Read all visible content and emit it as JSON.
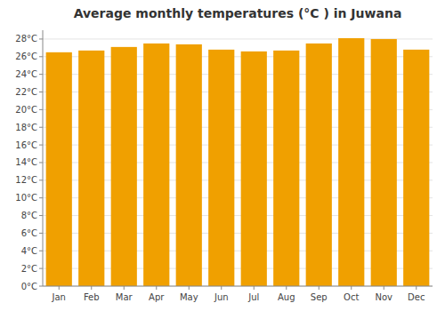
{
  "chart_data": {
    "type": "bar",
    "title": "Average monthly temperatures (°C ) in Juwana",
    "categories": [
      "Jan",
      "Feb",
      "Mar",
      "Apr",
      "May",
      "Jun",
      "Jul",
      "Aug",
      "Sep",
      "Oct",
      "Nov",
      "Dec"
    ],
    "values": [
      26.5,
      26.7,
      27.1,
      27.5,
      27.4,
      26.8,
      26.6,
      26.7,
      27.5,
      28.1,
      28.0,
      26.8
    ],
    "color": "#F0A000",
    "ylim": [
      0,
      29
    ],
    "yticks": [
      {
        "value": 0,
        "label": "0°C"
      },
      {
        "value": 2,
        "label": "2°C"
      },
      {
        "value": 4,
        "label": "4°C"
      },
      {
        "value": 6,
        "label": "6°C"
      },
      {
        "value": 8,
        "label": "8°C"
      },
      {
        "value": 10,
        "label": "10°C"
      },
      {
        "value": 12,
        "label": "12°C"
      },
      {
        "value": 14,
        "label": "14°C"
      },
      {
        "value": 16,
        "label": "16°C"
      },
      {
        "value": 18,
        "label": "18°C"
      },
      {
        "value": 20,
        "label": "20°C"
      },
      {
        "value": 22,
        "label": "22°C"
      },
      {
        "value": 24,
        "label": "24°C"
      },
      {
        "value": 26,
        "label": "26°C"
      },
      {
        "value": 28,
        "label": "28°C"
      }
    ],
    "grid": true
  }
}
